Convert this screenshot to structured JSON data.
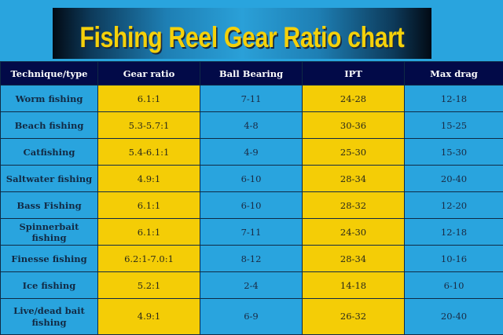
{
  "title": "Fishing Reel Gear Ratio chart",
  "colors": {
    "background": "#29a4de",
    "header_bg": "#020a48",
    "highlight_column": "#f4cd06",
    "title_text": "#f5d10a"
  },
  "table": {
    "headers": [
      "Technique/type",
      "Gear ratio",
      "Ball Bearing",
      "IPT",
      "Max drag"
    ],
    "rows": [
      [
        "Worm fishing",
        "6.1:1",
        "7-11",
        "24-28",
        "12-18"
      ],
      [
        "Beach fishing",
        "5.3-5.7:1",
        "4-8",
        "30-36",
        "15-25"
      ],
      [
        "Catfishing",
        "5.4-6.1:1",
        "4-9",
        "25-30",
        "15-30"
      ],
      [
        "Saltwater fishing",
        "4.9:1",
        "6-10",
        "28-34",
        "20-40"
      ],
      [
        "Bass Fishing",
        "6.1:1",
        "6-10",
        "28-32",
        "12-20"
      ],
      [
        "Spinnerbait fishing",
        "6.1:1",
        "7-11",
        "24-30",
        "12-18"
      ],
      [
        "Finesse fishing",
        "6.2:1-7.0:1",
        "8-12",
        "28-34",
        "10-16"
      ],
      [
        "Ice fishing",
        "5.2:1",
        "2-4",
        "14-18",
        "6-10"
      ],
      [
        "Live/dead bait fishing",
        "4.9:1",
        "6-9",
        "26-32",
        "20-40"
      ]
    ]
  },
  "chart_data": {
    "type": "table",
    "title": "Fishing Reel Gear Ratio chart",
    "columns": [
      "Technique/type",
      "Gear ratio",
      "Ball Bearing",
      "IPT",
      "Max drag"
    ],
    "rows": [
      {
        "technique": "Worm fishing",
        "gear_ratio": "6.1:1",
        "ball_bearing": "7-11",
        "ipt": "24-28",
        "max_drag": "12-18"
      },
      {
        "technique": "Beach fishing",
        "gear_ratio": "5.3-5.7:1",
        "ball_bearing": "4-8",
        "ipt": "30-36",
        "max_drag": "15-25"
      },
      {
        "technique": "Catfishing",
        "gear_ratio": "5.4-6.1:1",
        "ball_bearing": "4-9",
        "ipt": "25-30",
        "max_drag": "15-30"
      },
      {
        "technique": "Saltwater fishing",
        "gear_ratio": "4.9:1",
        "ball_bearing": "6-10",
        "ipt": "28-34",
        "max_drag": "20-40"
      },
      {
        "technique": "Bass Fishing",
        "gear_ratio": "6.1:1",
        "ball_bearing": "6-10",
        "ipt": "28-32",
        "max_drag": "12-20"
      },
      {
        "technique": "Spinnerbait fishing",
        "gear_ratio": "6.1:1",
        "ball_bearing": "7-11",
        "ipt": "24-30",
        "max_drag": "12-18"
      },
      {
        "technique": "Finesse fishing",
        "gear_ratio": "6.2:1-7.0:1",
        "ball_bearing": "8-12",
        "ipt": "28-34",
        "max_drag": "10-16"
      },
      {
        "technique": "Ice fishing",
        "gear_ratio": "5.2:1",
        "ball_bearing": "2-4",
        "ipt": "14-18",
        "max_drag": "6-10"
      },
      {
        "technique": "Live/dead bait fishing",
        "gear_ratio": "4.9:1",
        "ball_bearing": "6-9",
        "ipt": "26-32",
        "max_drag": "20-40"
      }
    ]
  }
}
